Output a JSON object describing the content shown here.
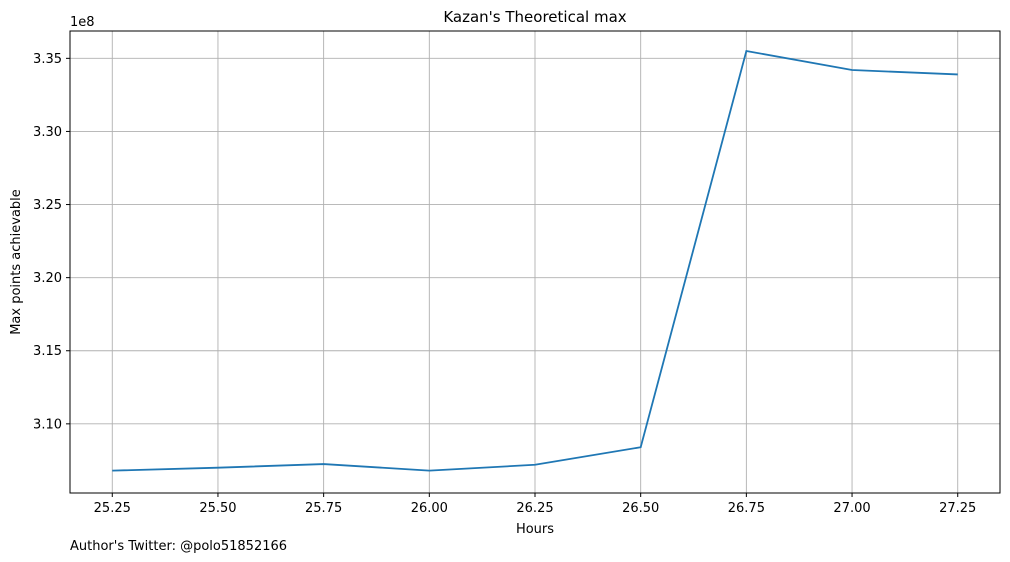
{
  "chart_data": {
    "type": "line",
    "title": "Kazan's Theoretical max",
    "xlabel": "Hours",
    "ylabel": "Max points achievable",
    "y_offset_label": "1e8",
    "footnote": "Author's Twitter: @polo51852166",
    "x_ticks": [
      "25.25",
      "25.50",
      "25.75",
      "26.00",
      "26.25",
      "26.50",
      "26.75",
      "27.00",
      "27.25"
    ],
    "y_ticks": [
      "3.10",
      "3.15",
      "3.20",
      "3.25",
      "3.30",
      "3.35"
    ],
    "xlim": [
      25.15,
      27.35
    ],
    "ylim": [
      3.0527,
      3.3687
    ],
    "grid": true,
    "color": "#1f77b4",
    "series": [
      {
        "x": [
          25.25,
          25.5,
          25.75,
          26.0,
          26.25,
          26.5,
          26.75,
          27.0,
          27.25
        ],
        "values": [
          3.068,
          3.07,
          3.0725,
          3.068,
          3.072,
          3.084,
          3.355,
          3.342,
          3.339
        ]
      }
    ]
  }
}
